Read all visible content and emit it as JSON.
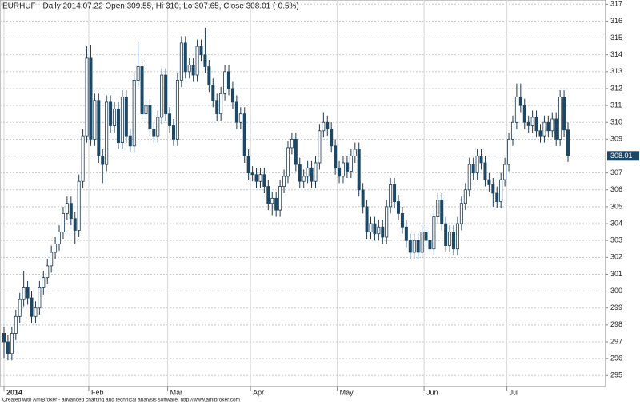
{
  "chart_data": {
    "type": "candlestick",
    "title": "EURHUF - Daily 2014.07.22  Open 309.55, Hi 310, Lo 307.65, Close 308.01 (-0.5%)",
    "categories": [
      "2014",
      null,
      null,
      null,
      null,
      null,
      null,
      null,
      null,
      null,
      null,
      null,
      null,
      null,
      null,
      null,
      null,
      null,
      null,
      null,
      null,
      null,
      "Feb",
      null,
      null,
      null,
      null,
      null,
      null,
      null,
      null,
      null,
      null,
      null,
      null,
      null,
      null,
      null,
      null,
      null,
      null,
      null,
      "Mar",
      null,
      null,
      null,
      null,
      null,
      null,
      null,
      null,
      null,
      null,
      null,
      null,
      null,
      null,
      null,
      null,
      null,
      null,
      null,
      null,
      "Apr",
      null,
      null,
      null,
      null,
      null,
      null,
      null,
      null,
      null,
      null,
      null,
      null,
      null,
      null,
      null,
      null,
      null,
      null,
      null,
      null,
      null,
      "May",
      null,
      null,
      null,
      null,
      null,
      null,
      null,
      null,
      null,
      null,
      null,
      null,
      null,
      null,
      null,
      null,
      null,
      null,
      null,
      null,
      null,
      "Jun",
      null,
      null,
      null,
      null,
      null,
      null,
      null,
      null,
      null,
      null,
      null,
      null,
      null,
      null,
      null,
      null,
      null,
      null,
      null,
      null,
      "Jul",
      null,
      null,
      null,
      null,
      null,
      null,
      null,
      null,
      null,
      null,
      null,
      null,
      null,
      null,
      null
    ],
    "open": [
      297.5,
      297.0,
      296.3,
      297.5,
      298.5,
      299.5,
      300.2,
      299.6,
      298.5,
      299.0,
      300.2,
      300.8,
      301.5,
      302.3,
      302.8,
      303.5,
      304.6,
      305.2,
      304.3,
      303.6,
      306.5,
      309.2,
      313.8,
      309.0,
      311.3,
      308.0,
      307.5,
      311.2,
      309.8,
      310.8,
      308.8,
      311.5,
      309.2,
      308.6,
      312.5,
      313.3,
      310.5,
      311.0,
      309.6,
      309.2,
      310.3,
      312.8,
      310.5,
      309.8,
      309.0,
      312.5,
      314.7,
      313.0,
      313.4,
      312.8,
      314.5,
      314.0,
      313.3,
      312.2,
      311.3,
      310.5,
      311.7,
      313.0,
      312.0,
      311.2,
      310.0,
      310.5,
      308.0,
      307.0,
      306.9,
      306.5,
      306.9,
      306.2,
      305.2,
      305.5,
      304.8,
      306.2,
      306.8,
      308.5,
      309.0,
      307.5,
      306.5,
      306.8,
      307.3,
      306.5,
      307.6,
      309.5,
      310.0,
      309.6,
      308.6,
      307.3,
      306.8,
      307.6,
      307.1,
      308.0,
      308.4,
      306.0,
      305.0,
      303.5,
      304.0,
      303.4,
      303.8,
      303.2,
      305.0,
      306.3,
      305.3,
      304.6,
      303.8,
      303.0,
      302.3,
      303.0,
      302.3,
      303.5,
      303.0,
      302.5,
      304.4,
      305.4,
      304.0,
      302.7,
      303.5,
      302.5,
      304.0,
      305.2,
      306.0,
      307.5,
      307.0,
      308.0,
      307.6,
      306.6,
      306.3,
      305.8,
      305.3,
      306.6,
      307.5,
      309.0,
      310.0,
      311.5,
      311.0,
      310.0,
      309.8,
      310.3,
      309.5,
      309.2,
      310.0,
      309.5,
      310.2,
      309.0,
      311.5,
      309.55
    ],
    "high": [
      297.9,
      297.4,
      297.9,
      298.9,
      299.9,
      301.2,
      300.6,
      300.0,
      299.4,
      300.6,
      301.2,
      301.9,
      302.7,
      303.2,
      303.9,
      305.0,
      305.6,
      305.6,
      304.7,
      306.9,
      309.6,
      314.5,
      314.6,
      311.7,
      311.7,
      308.4,
      311.6,
      311.6,
      311.2,
      311.2,
      311.9,
      311.9,
      309.6,
      312.9,
      314.8,
      313.7,
      311.4,
      311.4,
      310.0,
      310.7,
      313.2,
      313.2,
      310.9,
      310.2,
      312.9,
      315.1,
      315.1,
      313.8,
      313.8,
      314.9,
      314.9,
      315.6,
      313.7,
      312.6,
      311.7,
      312.1,
      313.4,
      313.4,
      312.4,
      311.6,
      310.9,
      310.9,
      308.4,
      307.4,
      307.3,
      307.3,
      307.3,
      306.6,
      305.9,
      305.9,
      306.6,
      307.2,
      308.9,
      309.4,
      309.4,
      307.9,
      307.2,
      307.7,
      307.7,
      308.0,
      309.9,
      310.6,
      310.4,
      310.0,
      309.0,
      307.7,
      308.0,
      308.0,
      308.4,
      308.8,
      308.8,
      306.4,
      305.4,
      304.4,
      304.4,
      304.2,
      304.2,
      305.4,
      306.7,
      306.7,
      305.7,
      305.0,
      304.2,
      303.4,
      303.4,
      303.4,
      303.9,
      303.9,
      303.4,
      304.8,
      305.8,
      305.8,
      304.4,
      303.9,
      303.9,
      304.4,
      305.6,
      306.4,
      307.9,
      307.9,
      308.4,
      308.4,
      308.0,
      307.0,
      306.7,
      306.2,
      307.0,
      307.9,
      309.4,
      310.4,
      312.3,
      312.3,
      311.4,
      310.4,
      310.7,
      310.7,
      309.9,
      310.4,
      310.4,
      310.6,
      310.6,
      311.9,
      311.9,
      310
    ],
    "low": [
      296.0,
      295.9,
      295.9,
      297.1,
      298.1,
      299.1,
      299.2,
      298.1,
      298.1,
      298.6,
      299.8,
      300.4,
      301.1,
      301.9,
      302.4,
      303.1,
      304.2,
      303.9,
      302.8,
      303.2,
      306.1,
      308.8,
      308.6,
      308.6,
      307.6,
      306.4,
      307.1,
      309.4,
      309.4,
      308.4,
      308.4,
      308.8,
      308.2,
      308.2,
      312.1,
      310.1,
      310.1,
      309.2,
      308.8,
      308.8,
      309.9,
      310.1,
      309.4,
      308.6,
      308.6,
      312.1,
      312.6,
      312.6,
      312.4,
      312.4,
      313.6,
      312.9,
      311.8,
      310.9,
      310.1,
      310.1,
      311.3,
      311.6,
      310.8,
      309.6,
      309.6,
      307.6,
      306.6,
      306.5,
      306.1,
      306.1,
      305.8,
      304.8,
      304.5,
      304.4,
      304.4,
      305.8,
      306.4,
      308.1,
      307.1,
      306.1,
      306.1,
      306.4,
      306.1,
      306.1,
      307.2,
      309.1,
      309.2,
      308.2,
      306.9,
      306.4,
      306.4,
      306.7,
      306.7,
      307.6,
      305.6,
      304.6,
      303.1,
      303.1,
      303.0,
      303.0,
      302.8,
      302.8,
      304.6,
      304.9,
      304.2,
      303.4,
      302.6,
      301.9,
      301.9,
      301.9,
      301.9,
      302.6,
      302.1,
      302.1,
      304.0,
      303.6,
      302.3,
      302.3,
      302.1,
      302.1,
      303.6,
      304.8,
      305.6,
      306.6,
      306.6,
      307.2,
      306.2,
      305.9,
      305.0,
      304.9,
      304.9,
      306.2,
      307.1,
      308.6,
      309.6,
      310.6,
      309.6,
      309.4,
      309.4,
      309.1,
      308.8,
      308.8,
      309.1,
      309.1,
      308.6,
      308.6,
      309.15,
      307.65
    ],
    "close": [
      297.0,
      296.3,
      297.5,
      298.5,
      299.5,
      300.2,
      299.6,
      298.5,
      299.0,
      300.2,
      300.8,
      301.5,
      302.3,
      302.8,
      303.5,
      304.6,
      305.2,
      304.3,
      303.6,
      306.5,
      309.2,
      313.8,
      309.0,
      311.3,
      308.0,
      307.5,
      311.2,
      309.8,
      310.8,
      308.8,
      311.5,
      309.2,
      308.6,
      312.5,
      313.3,
      310.5,
      311.0,
      309.6,
      309.2,
      310.3,
      312.8,
      310.5,
      309.8,
      309.0,
      312.5,
      314.7,
      313.0,
      313.4,
      312.8,
      314.5,
      314.0,
      313.3,
      312.2,
      311.3,
      310.5,
      311.7,
      313.0,
      312.0,
      311.2,
      310.0,
      310.5,
      308.0,
      307.0,
      306.9,
      306.5,
      306.9,
      306.2,
      305.2,
      305.5,
      304.8,
      306.2,
      306.8,
      308.5,
      309.0,
      307.5,
      306.5,
      306.8,
      307.3,
      306.5,
      307.6,
      309.5,
      310.0,
      309.6,
      308.6,
      307.3,
      306.8,
      307.6,
      307.1,
      308.0,
      308.4,
      306.0,
      305.0,
      303.5,
      304.0,
      303.4,
      303.8,
      303.2,
      305.0,
      306.3,
      305.3,
      304.6,
      303.8,
      303.0,
      302.3,
      303.0,
      302.3,
      303.5,
      303.0,
      302.5,
      304.4,
      305.4,
      304.0,
      302.7,
      303.5,
      302.5,
      304.0,
      305.2,
      306.0,
      307.5,
      307.0,
      308.0,
      307.6,
      306.6,
      306.3,
      305.8,
      305.3,
      306.6,
      307.5,
      309.0,
      310.0,
      311.5,
      311.0,
      310.0,
      309.8,
      310.3,
      309.5,
      309.2,
      310.0,
      309.5,
      310.2,
      309.0,
      311.5,
      309.55,
      308.01
    ],
    "ylim": [
      294.35,
      317.25
    ],
    "yticks": [
      295,
      296,
      297,
      298,
      299,
      300,
      301,
      302,
      303,
      304,
      305,
      306,
      307,
      308,
      309,
      310,
      311,
      312,
      313,
      314,
      315,
      316,
      317
    ],
    "grid": true,
    "up_color": "#ffffff",
    "down_color": "#1c4866",
    "line_color": "#1c3a56"
  },
  "footer": "Created with AmiBroker - advanced charting and technical analysis software. http://www.amibroker.com"
}
